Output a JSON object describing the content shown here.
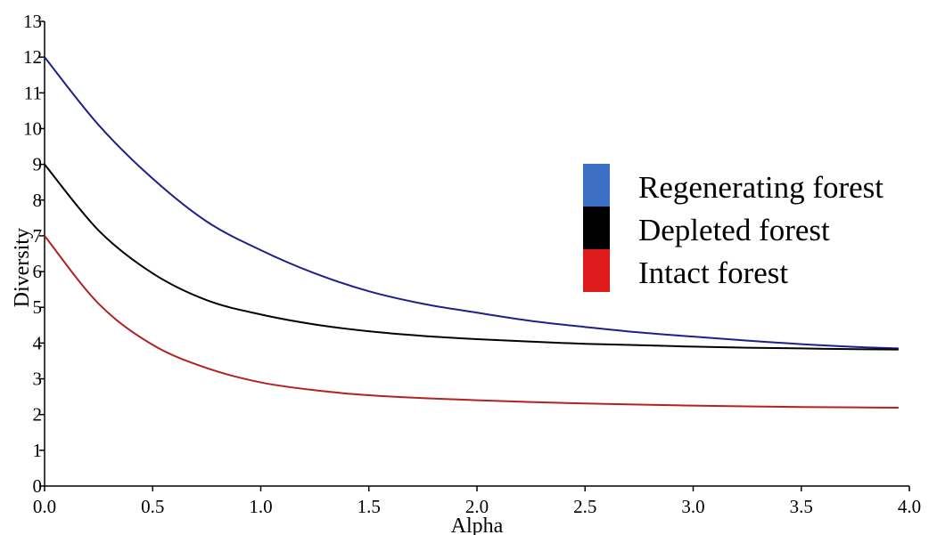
{
  "chart_data": {
    "type": "line",
    "title": "",
    "xlabel": "Alpha",
    "ylabel": "Diversity",
    "xlim": [
      0,
      4.0
    ],
    "ylim": [
      0,
      13
    ],
    "x_ticks": [
      "0.0",
      "0.5",
      "1.0",
      "1.5",
      "2.0",
      "2.5",
      "3.0",
      "3.5",
      "4.0"
    ],
    "y_ticks": [
      "0",
      "1",
      "2",
      "3",
      "4",
      "5",
      "6",
      "7",
      "8",
      "9",
      "10",
      "11",
      "12",
      "13"
    ],
    "grid": false,
    "legend_position": "right",
    "x": [
      0.0,
      0.25,
      0.5,
      0.75,
      1.0,
      1.25,
      1.5,
      1.75,
      2.0,
      2.25,
      2.5,
      2.75,
      3.0,
      3.25,
      3.5,
      3.75,
      3.95
    ],
    "series": [
      {
        "name": "Regenerating forest",
        "color": "#1f1f8a",
        "legend_color": "#3a6fc4",
        "values": [
          12.0,
          10.1,
          8.6,
          7.4,
          6.6,
          5.95,
          5.45,
          5.1,
          4.85,
          4.62,
          4.45,
          4.3,
          4.18,
          4.07,
          3.97,
          3.89,
          3.85
        ]
      },
      {
        "name": "Depleted forest",
        "color": "#000000",
        "legend_color": "#000000",
        "values": [
          9.0,
          7.15,
          5.95,
          5.2,
          4.8,
          4.52,
          4.33,
          4.2,
          4.11,
          4.04,
          3.98,
          3.94,
          3.9,
          3.87,
          3.85,
          3.83,
          3.82
        ]
      },
      {
        "name": "Intact forest",
        "color": "#b22222",
        "legend_color": "#e01b1b",
        "values": [
          7.0,
          5.1,
          3.95,
          3.3,
          2.9,
          2.68,
          2.54,
          2.46,
          2.4,
          2.35,
          2.31,
          2.28,
          2.25,
          2.23,
          2.21,
          2.2,
          2.19
        ]
      }
    ]
  }
}
